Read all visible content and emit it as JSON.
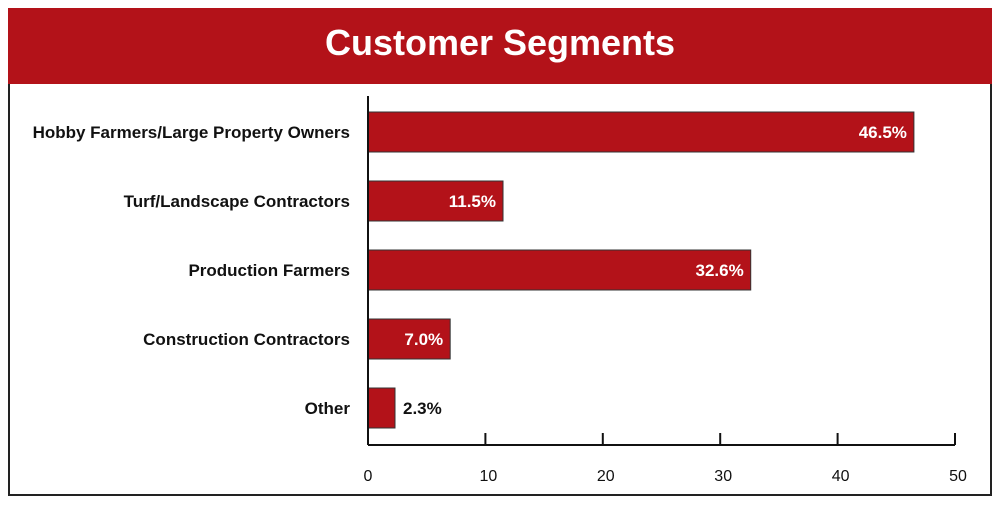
{
  "chart_data": {
    "type": "bar",
    "orientation": "horizontal",
    "title": "Customer Segments",
    "categories": [
      "Hobby Farmers/Large Property Owners",
      "Turf/Landscape Contractors",
      "Production Farmers",
      "Construction Contractors",
      "Other"
    ],
    "values": [
      46.5,
      11.5,
      32.6,
      7.0,
      2.3
    ],
    "data_labels": [
      "46.5%",
      "11.5%",
      "32.6%",
      "7.0%",
      "2.3%"
    ],
    "xlim": [
      0,
      50
    ],
    "xticks": [
      0,
      10,
      20,
      30,
      40,
      50
    ],
    "xlabel": "",
    "ylabel": "",
    "grid": false,
    "legend": "none",
    "colors": {
      "bar": "#B31219",
      "header": "#B31219"
    }
  }
}
